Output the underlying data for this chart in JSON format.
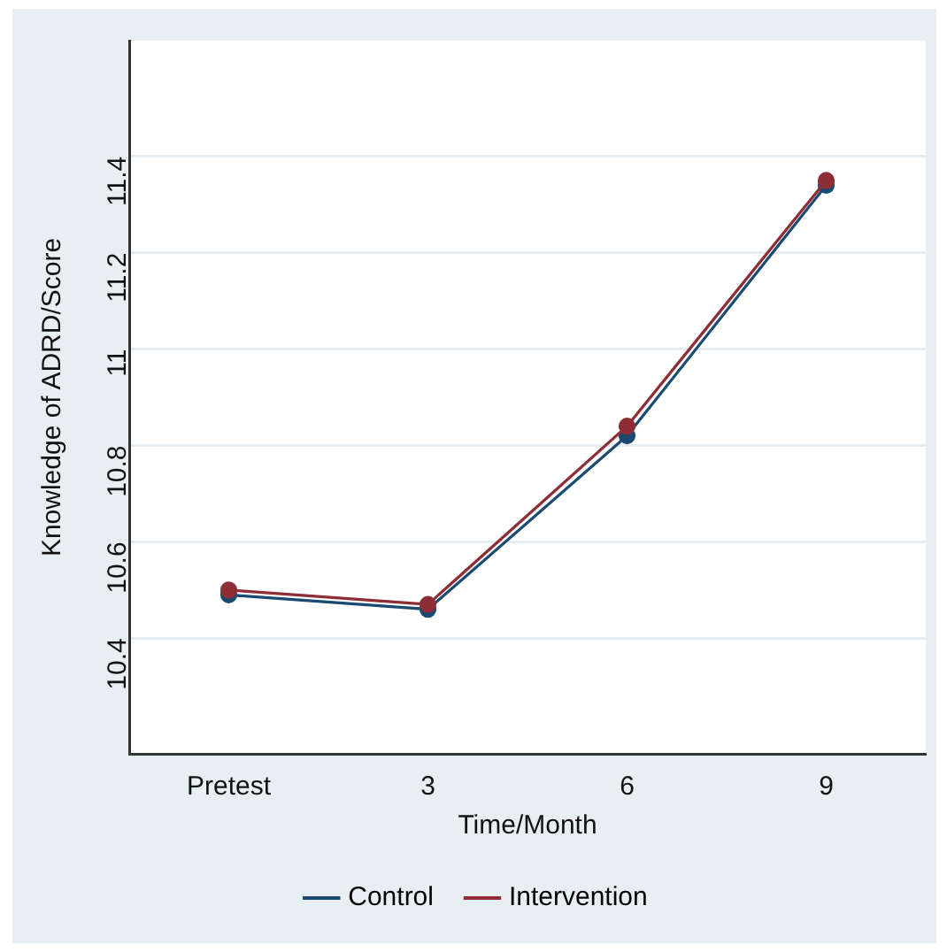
{
  "chart_data": {
    "type": "line",
    "xlabel": "Time/Month",
    "ylabel": "Knowledge of ADRD/Score",
    "categories": [
      "Pretest",
      "3",
      "6",
      "9"
    ],
    "series": [
      {
        "name": "Control",
        "color": "#1a4a72",
        "values": [
          10.49,
          10.46,
          10.82,
          11.34
        ]
      },
      {
        "name": "Intervention",
        "color": "#8f2d36",
        "values": [
          10.5,
          10.47,
          10.84,
          11.35
        ]
      }
    ],
    "ylim": [
      10.16,
      11.64
    ],
    "yticks": [
      {
        "value": 10.4,
        "label": "10.4"
      },
      {
        "value": 10.6,
        "label": "10.6"
      },
      {
        "value": 10.8,
        "label": "10.8"
      },
      {
        "value": 11,
        "label": "11"
      },
      {
        "value": 11.2,
        "label": "11.2"
      },
      {
        "value": 11.4,
        "label": "11.4"
      }
    ],
    "grid": "y",
    "legend": "bottom",
    "marker": "circle",
    "line_style": "solid"
  }
}
